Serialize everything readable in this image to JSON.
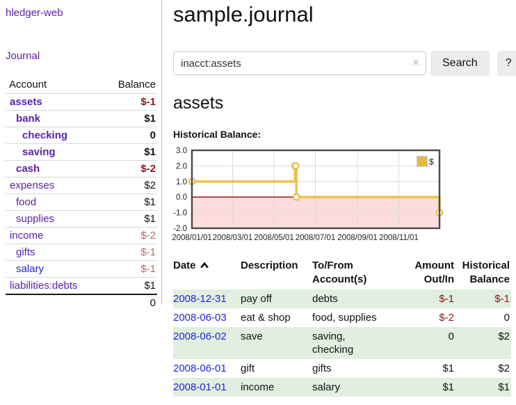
{
  "colors": {
    "link_purple": "#5b22a8",
    "link_blue": "#2323d6",
    "negative_bold_red": "#8e1515",
    "negative_muted_red": "#b16a6a",
    "row_green": "#e0efdf",
    "button_gray": "#ececec"
  },
  "sidebar": {
    "app_title": "hledger-web",
    "nav": {
      "journal_label": "Journal"
    },
    "table": {
      "account_header": "Account",
      "balance_header": "Balance"
    },
    "accounts": [
      {
        "name": "assets",
        "balance": "$-1",
        "indent": 0,
        "bold": true
      },
      {
        "name": "bank",
        "balance": "$1",
        "indent": 1,
        "bold": true
      },
      {
        "name": "checking",
        "balance": "0",
        "indent": 2,
        "bold": true
      },
      {
        "name": "saving",
        "balance": "$1",
        "indent": 2,
        "bold": true
      },
      {
        "name": "cash",
        "balance": "$-2",
        "indent": 1,
        "bold": true
      },
      {
        "name": "expenses",
        "balance": "$2",
        "indent": 0,
        "bold": false
      },
      {
        "name": "food",
        "balance": "$1",
        "indent": 1,
        "bold": false
      },
      {
        "name": "supplies",
        "balance": "$1",
        "indent": 1,
        "bold": false
      },
      {
        "name": "income",
        "balance": "$-2",
        "indent": 0,
        "bold": false
      },
      {
        "name": "gifts",
        "balance": "$-1",
        "indent": 1,
        "bold": false
      },
      {
        "name": "salary",
        "balance": "$-1",
        "indent": 1,
        "bold": false
      },
      {
        "name": "liabilities:debts",
        "balance": "$1",
        "indent": 0,
        "bold": false
      }
    ],
    "total": "0"
  },
  "header": {
    "title": "sample.journal"
  },
  "search": {
    "value": "inacct:assets",
    "clear_icon": "×",
    "button_label": "Search",
    "help_label": "?"
  },
  "account_page": {
    "heading": "assets",
    "chart_label": "Historical Balance:"
  },
  "chart_data": {
    "type": "line",
    "step": true,
    "title": "Historical Balance:",
    "series": [
      {
        "name": "$",
        "points": [
          [
            "2008-01-01",
            1
          ],
          [
            "2008-06-01",
            2
          ],
          [
            "2008-06-02",
            2
          ],
          [
            "2008-06-03",
            0
          ],
          [
            "2008-12-31",
            -1
          ]
        ]
      }
    ],
    "ylim": [
      -2,
      3
    ],
    "yticks": [
      "3.0",
      "2.0",
      "1.0",
      "0.0",
      "-1.0",
      "-2.0"
    ],
    "xlim": [
      "2008-01-01",
      "2008-12-31"
    ],
    "xticks": [
      "2008/01/01",
      "2008/03/01",
      "2008/05/01",
      "2008/07/01",
      "2008/09/01",
      "2008/11/01"
    ],
    "grid": true,
    "legend": {
      "label": "$",
      "position": "top-right"
    },
    "line_color": "#e9c14f",
    "marker_fill": "#ffffff",
    "legend_swatch_color": "#e8bb3d",
    "negative_region_fill": "#fcdcdc",
    "zero_line_color": "#990000",
    "plot_border_color": "#4a4a4a",
    "grid_color": "#dcdcdc"
  },
  "register": {
    "columns": [
      "Date",
      "Description",
      "To/From Account(s)",
      "Amount Out/In",
      "Historical Balance"
    ],
    "sort": {
      "column": "Date",
      "direction": "ascending"
    },
    "rows": [
      {
        "date": "2008-12-31",
        "description": "pay off",
        "accounts": "debts",
        "amount": "$-1",
        "balance": "$-1"
      },
      {
        "date": "2008-06-03",
        "description": "eat & shop",
        "accounts": "food, supplies",
        "amount": "$-2",
        "balance": "0"
      },
      {
        "date": "2008-06-02",
        "description": "save",
        "accounts": "saving, checking",
        "amount": "0",
        "balance": "$2"
      },
      {
        "date": "2008-06-01",
        "description": "gift",
        "accounts": "gifts",
        "amount": "$1",
        "balance": "$2"
      },
      {
        "date": "2008-01-01",
        "description": "income",
        "accounts": "salary",
        "amount": "$1",
        "balance": "$1"
      }
    ]
  }
}
